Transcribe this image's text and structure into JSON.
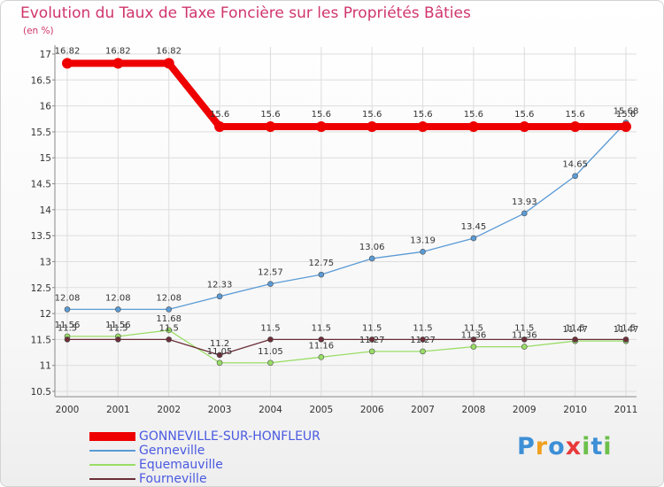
{
  "header": {
    "title": "Evolution du Taux de Taxe Foncière sur les Propriétés Bâties",
    "unit": "(en %)"
  },
  "colors": {
    "title": "#d0356c",
    "grid": "#dddddd",
    "legend_text": "#4a5ae0"
  },
  "logo": {
    "text": "Proxiti",
    "icon": "proxiti-logo"
  },
  "chart_data": {
    "type": "line",
    "title": "Evolution du Taux de Taxe Foncière sur les Propriétés Bâties",
    "ylabel": "(en %)",
    "xlabel": "",
    "x": [
      "2000",
      "2001",
      "2002",
      "2003",
      "2004",
      "2005",
      "2006",
      "2007",
      "2008",
      "2009",
      "2010",
      "2011"
    ],
    "ylim": [
      10.5,
      17
    ],
    "yticks": [
      "10.5",
      "11",
      "11.5",
      "12",
      "12.5",
      "13",
      "13.5",
      "14",
      "14.5",
      "15",
      "15.5",
      "16",
      "16.5",
      "17"
    ],
    "grid": true,
    "legend_position": "bottom-left",
    "series": [
      {
        "name": "GONNEVILLE-SUR-HONFLEUR",
        "color": "#ee0000",
        "values": [
          16.82,
          16.82,
          16.82,
          15.6,
          15.6,
          15.6,
          15.6,
          15.6,
          15.6,
          15.6,
          15.6,
          15.6
        ],
        "labels": [
          "16.82",
          "16.82",
          "16.82",
          "15.6",
          "15.6",
          "15.6",
          "15.6",
          "15.6",
          "15.6",
          "15.6",
          "15.6",
          "15.6"
        ]
      },
      {
        "name": "Genneville",
        "color": "#5b9bd5",
        "values": [
          12.08,
          12.08,
          12.08,
          12.33,
          12.57,
          12.75,
          13.06,
          13.19,
          13.45,
          13.93,
          14.65,
          15.68
        ],
        "labels": [
          "12.08",
          "12.08",
          "12.08",
          "12.33",
          "12.57",
          "12.75",
          "13.06",
          "13.19",
          "13.45",
          "13.93",
          "14.65",
          "15.68"
        ]
      },
      {
        "name": "Equemauville",
        "color": "#99dd66",
        "values": [
          11.56,
          11.56,
          11.68,
          11.05,
          11.05,
          11.16,
          11.27,
          11.27,
          11.36,
          11.36,
          11.47,
          11.47
        ],
        "labels": [
          "11.56",
          "11.56",
          "11.68",
          "11.05",
          "11.05",
          "11.16",
          "11.27",
          "11.27",
          "11.36",
          "11.36",
          "11.47",
          "11.47"
        ]
      },
      {
        "name": "Fourneville",
        "color": "#6b2e38",
        "values": [
          11.5,
          11.5,
          11.5,
          11.2,
          11.5,
          11.5,
          11.5,
          11.5,
          11.5,
          11.5,
          11.5,
          11.5
        ],
        "labels": [
          "11.5",
          "11.5",
          "11.5",
          "11.2",
          "11.5",
          "11.5",
          "11.5",
          "11.5",
          "11.5",
          "11.5",
          "11.5",
          "11.5"
        ]
      }
    ]
  }
}
